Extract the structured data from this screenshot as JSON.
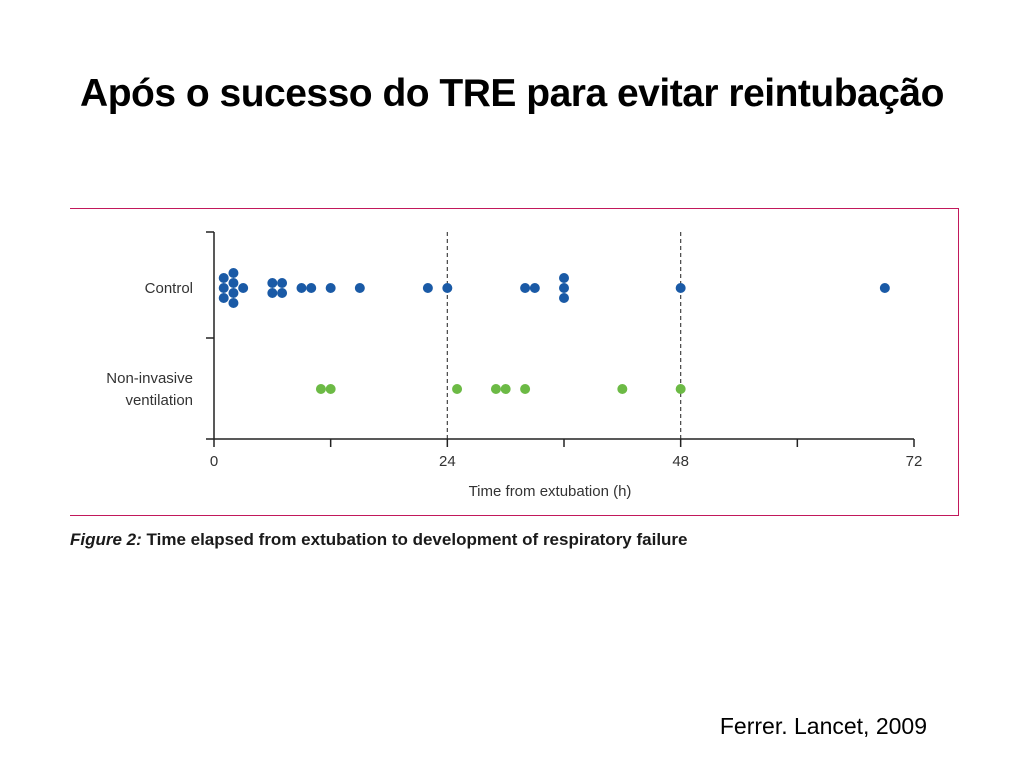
{
  "slide": {
    "title": "Após o sucesso do TRE para evitar reintubação",
    "citation": "Ferrer. Lancet, 2009"
  },
  "figure": {
    "label": "Figure 2:",
    "caption": "Time elapsed from extubation to development of respiratory failure",
    "frame_color": "#c2185b"
  },
  "chart_data": {
    "type": "scatter",
    "title": "",
    "xlabel": "Time from extubation (h)",
    "ylabel": "",
    "xlim": [
      0,
      72
    ],
    "xticks": [
      0,
      24,
      48,
      72
    ],
    "xminor_ticks": [
      12,
      36,
      60
    ],
    "reference_lines_x": [
      24,
      48
    ],
    "categories": [
      "Control",
      "Non-invasive\nventilation"
    ],
    "series": [
      {
        "name": "Control",
        "color": "#1a5aa6",
        "values": [
          1,
          1,
          1,
          2,
          2,
          2,
          2,
          3,
          6,
          6,
          7,
          7,
          9,
          10,
          12,
          15,
          22,
          24,
          32,
          33,
          36,
          36,
          36,
          48,
          69
        ]
      },
      {
        "name": "Non-invasive ventilation",
        "color": "#6cba45",
        "values": [
          11,
          12,
          25,
          29,
          30,
          32,
          42,
          48
        ]
      }
    ]
  }
}
